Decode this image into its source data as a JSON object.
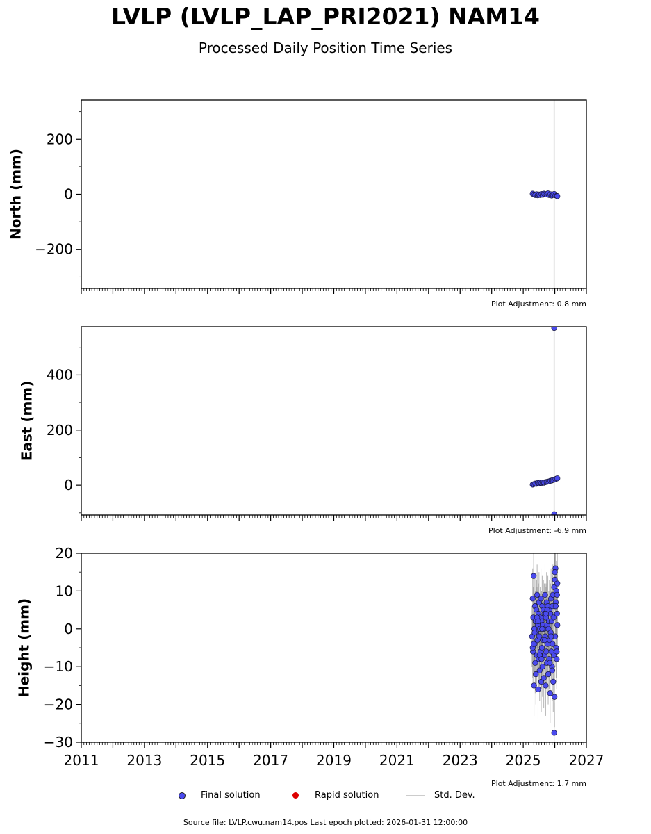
{
  "header": {
    "title": "LVLP (LVLP_LAP_PRI2021) NAM14",
    "subtitle": "Processed Daily Position Time Series"
  },
  "colors": {
    "final": "#4a4aee",
    "rapid": "#dd0000",
    "stddev": "#cccccc",
    "stddev_dense": "#777777"
  },
  "legend": {
    "final": "Final solution",
    "rapid": "Rapid solution",
    "stddev": "Std. Dev."
  },
  "footer": {
    "source": "Source file: LVLP.cwu.nam14.pos  Last epoch plotted: 2026-01-31 12:00:00"
  },
  "chart_data": [
    {
      "type": "scatter",
      "ylabel": "North (mm)",
      "adjustment": "Plot Adjustment: 0.8 mm",
      "xlim": [
        2011,
        2027
      ],
      "ylim": [
        -342,
        342
      ],
      "yticks": [
        200,
        0,
        -200
      ],
      "ytick_labels": [
        "200",
        "0",
        "−200"
      ],
      "ytick_minor_step": 100,
      "xlabels_shown": false,
      "vline_x": 2025.98,
      "x": [
        2025.3,
        2025.34,
        2025.38,
        2025.42,
        2025.46,
        2025.5,
        2025.54,
        2025.58,
        2025.62,
        2025.66,
        2025.7,
        2025.74,
        2025.78,
        2025.82,
        2025.86,
        2025.9,
        2025.94,
        2025.98,
        2026.02,
        2026.06,
        2026.08
      ],
      "y": [
        2,
        -1,
        -3,
        0,
        -4,
        -1,
        -3,
        1,
        -2,
        2,
        0,
        -1,
        3,
        -3,
        0,
        -5,
        -2,
        1,
        -4,
        -6,
        -7
      ],
      "stddev": [
        2,
        2,
        2,
        2,
        2,
        2,
        2,
        2,
        2,
        2,
        2,
        2,
        2,
        2,
        2,
        2,
        2,
        2,
        2,
        2,
        2
      ]
    },
    {
      "type": "scatter",
      "ylabel": "East (mm)",
      "adjustment": "Plot Adjustment: -6.9 mm",
      "xlim": [
        2011,
        2027
      ],
      "ylim": [
        -108,
        575
      ],
      "yticks": [
        400,
        200,
        0
      ],
      "ytick_labels": [
        "400",
        "200",
        "0"
      ],
      "ytick_minor_step": 100,
      "xlabels_shown": false,
      "vline_x": 2025.98,
      "x": [
        2025.3,
        2025.34,
        2025.38,
        2025.42,
        2025.46,
        2025.5,
        2025.54,
        2025.58,
        2025.62,
        2025.66,
        2025.7,
        2025.74,
        2025.78,
        2025.82,
        2025.86,
        2025.9,
        2025.94,
        2025.98,
        2025.98,
        2025.98,
        2026.02,
        2026.06,
        2026.08
      ],
      "y": [
        2,
        4,
        6,
        5,
        8,
        7,
        9,
        8,
        10,
        9,
        11,
        12,
        13,
        14,
        16,
        17,
        19,
        20,
        570,
        -105,
        22,
        24,
        25
      ],
      "stddev": [
        2,
        2,
        2,
        2,
        2,
        2,
        2,
        2,
        2,
        2,
        2,
        2,
        2,
        2,
        2,
        2,
        2,
        2,
        0,
        0,
        2,
        2,
        2
      ]
    },
    {
      "type": "scatter",
      "ylabel": "Height (mm)",
      "adjustment": "Plot Adjustment: 1.7 mm",
      "xlim": [
        2011,
        2027
      ],
      "ylim": [
        -30,
        20
      ],
      "yticks": [
        20,
        10,
        0,
        -10,
        -20,
        -30
      ],
      "ytick_labels": [
        "20",
        "10",
        "0",
        "−10",
        "−20",
        "−30"
      ],
      "ytick_minor_step": 5,
      "xlabels_shown": true,
      "xticks": [
        2011,
        2013,
        2015,
        2017,
        2019,
        2021,
        2023,
        2025,
        2027
      ],
      "xtick_labels": [
        "2011",
        "2013",
        "2015",
        "2017",
        "2019",
        "2021",
        "2023",
        "2025",
        "2027"
      ],
      "x": [
        2025.28,
        2025.3,
        2025.31,
        2025.32,
        2025.33,
        2025.34,
        2025.35,
        2025.36,
        2025.37,
        2025.38,
        2025.39,
        2025.4,
        2025.41,
        2025.42,
        2025.43,
        2025.44,
        2025.45,
        2025.46,
        2025.47,
        2025.48,
        2025.49,
        2025.5,
        2025.51,
        2025.52,
        2025.53,
        2025.54,
        2025.55,
        2025.56,
        2025.57,
        2025.58,
        2025.59,
        2025.6,
        2025.61,
        2025.62,
        2025.63,
        2025.64,
        2025.65,
        2025.66,
        2025.67,
        2025.68,
        2025.69,
        2025.7,
        2025.71,
        2025.72,
        2025.73,
        2025.74,
        2025.75,
        2025.76,
        2025.77,
        2025.78,
        2025.79,
        2025.8,
        2025.81,
        2025.82,
        2025.83,
        2025.84,
        2025.85,
        2025.86,
        2025.87,
        2025.88,
        2025.89,
        2025.9,
        2025.91,
        2025.92,
        2025.93,
        2025.94,
        2025.95,
        2025.96,
        2025.97,
        2025.98,
        2025.99,
        2026.0,
        2026.01,
        2026.02,
        2026.03,
        2026.04,
        2026.05,
        2026.06,
        2026.07,
        2026.08,
        2025.3,
        2025.36,
        2025.44,
        2025.52,
        2025.6,
        2025.68,
        2025.76,
        2025.84,
        2025.92,
        2026.0,
        2026.06,
        2025.98,
        2026.07,
        2026.08,
        2025.33,
        2025.47,
        2025.58,
        2025.72,
        2025.88,
        2026.03
      ],
      "y": [
        -2,
        8,
        -6,
        3,
        14,
        -15,
        0,
        -4,
        6,
        -9,
        2,
        -12,
        -1,
        5,
        -7,
        9,
        -3,
        1,
        -16,
        4,
        -8,
        7,
        -2,
        -11,
        0,
        3,
        -6,
        8,
        -14,
        2,
        -5,
        6,
        -10,
        1,
        -3,
        5,
        -13,
        0,
        4,
        -7,
        9,
        -2,
        -15,
        3,
        -6,
        7,
        -9,
        1,
        -4,
        6,
        -12,
        0,
        2,
        -8,
        5,
        -3,
        -17,
        4,
        -1,
        8,
        -6,
        2,
        -10,
        6,
        -4,
        9,
        -14,
        3,
        -7,
        11,
        -18,
        13,
        -2,
        16,
        7,
        -5,
        10,
        -8,
        4,
        12,
        -5,
        -1,
        3,
        -7,
        0,
        -3,
        5,
        -9,
        -11,
        15,
        -6,
        -27.5,
        9,
        1,
        -4,
        2,
        -8,
        4,
        -2,
        6
      ],
      "stddev": [
        8,
        8,
        8,
        8,
        8,
        8,
        8,
        8,
        8,
        8,
        8,
        8,
        8,
        8,
        8,
        8,
        8,
        8,
        8,
        8,
        8,
        8,
        8,
        8,
        8,
        8,
        8,
        8,
        8,
        8,
        8,
        8,
        8,
        8,
        8,
        8,
        8,
        8,
        8,
        8,
        8,
        8,
        8,
        8,
        8,
        8,
        8,
        8,
        8,
        8,
        8,
        8,
        8,
        8,
        8,
        8,
        8,
        8,
        8,
        8,
        8,
        8,
        8,
        8,
        8,
        8,
        8,
        8,
        8,
        8,
        8,
        8,
        8,
        8,
        8,
        8,
        8,
        8,
        8,
        8,
        8,
        8,
        8,
        8,
        8,
        8,
        8,
        8,
        8,
        8,
        8,
        8,
        8,
        8,
        8,
        8,
        8,
        8,
        8,
        8
      ]
    }
  ]
}
